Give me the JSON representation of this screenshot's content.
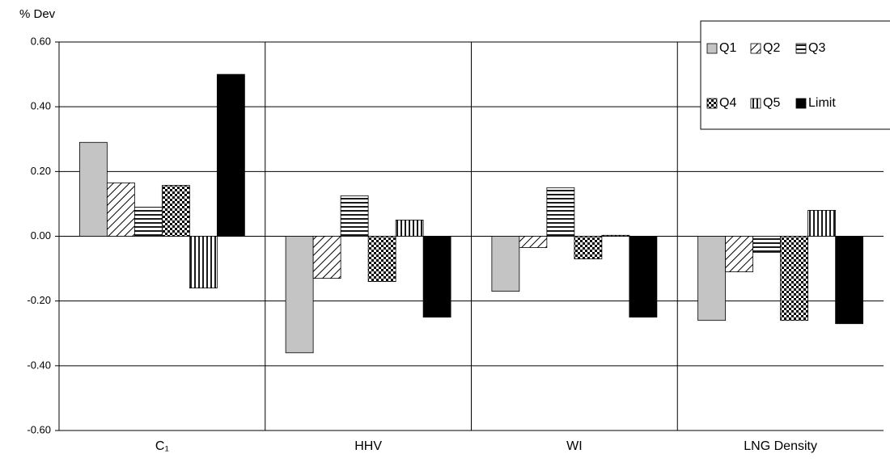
{
  "chart_data": {
    "type": "bar",
    "y_label": "% Dev",
    "categories": [
      "C₁",
      "HHV",
      "WI",
      "LNG Density"
    ],
    "series": [
      {
        "name": "Q1",
        "color": "#c4c4c4",
        "pattern": "solid",
        "values": [
          0.29,
          -0.36,
          -0.17,
          -0.26
        ]
      },
      {
        "name": "Q2",
        "color": "#000000",
        "pattern": "diagonal",
        "values": [
          0.165,
          -0.13,
          -0.035,
          -0.11
        ]
      },
      {
        "name": "Q3",
        "color": "#000000",
        "pattern": "horizontal",
        "values": [
          0.09,
          0.125,
          0.15,
          -0.05
        ]
      },
      {
        "name": "Q4",
        "color": "#000000",
        "pattern": "grid",
        "values": [
          0.157,
          -0.14,
          -0.07,
          -0.26
        ]
      },
      {
        "name": "Q5",
        "color": "#000000",
        "pattern": "vertical",
        "values": [
          -0.16,
          0.05,
          0.003,
          0.08
        ]
      },
      {
        "name": "Limit",
        "color": "#000000",
        "pattern": "solid",
        "values": [
          0.5,
          -0.25,
          -0.25,
          -0.27
        ]
      }
    ],
    "ylim": [
      -0.6,
      0.6
    ],
    "yticks": [
      {
        "value": -0.6,
        "label": "-0.60"
      },
      {
        "value": -0.4,
        "label": "-0.40"
      },
      {
        "value": -0.2,
        "label": "-0.20"
      },
      {
        "value": 0,
        "label": "0.00"
      },
      {
        "value": 0.2,
        "label": "0.20"
      },
      {
        "value": 0.4,
        "label": "0.40"
      },
      {
        "value": 0.6,
        "label": "0.60"
      }
    ],
    "grid": true,
    "legend": "upper right"
  }
}
